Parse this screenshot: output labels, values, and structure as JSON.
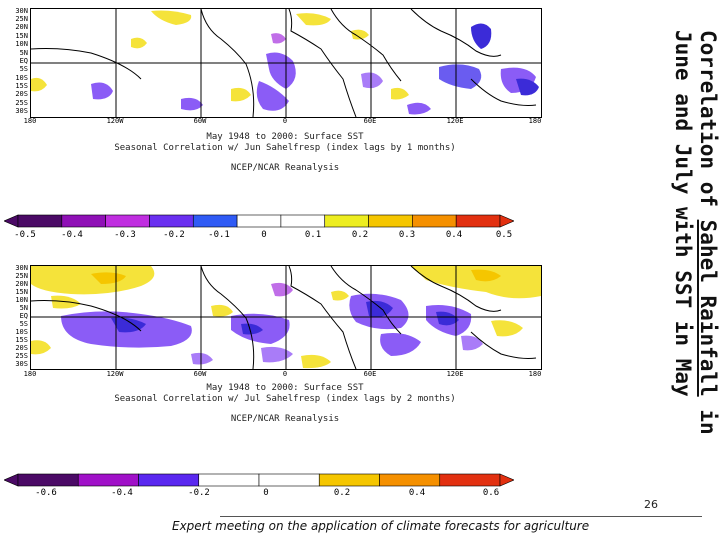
{
  "slide": {
    "title_part1": "Correlation of ",
    "title_link": "Sahel Rainfall",
    "title_part2": " in June and July with SST in May",
    "page_number": "26",
    "footer": "Expert meeting on the application of climate forecasts for agriculture"
  },
  "map1": {
    "lat_labels": [
      "30N",
      "25N",
      "20N",
      "15N",
      "10N",
      "5N",
      "EQ",
      "5S",
      "10S",
      "15S",
      "20S",
      "25S",
      "30S"
    ],
    "lon_labels": [
      "180",
      "120W",
      "60W",
      "0",
      "60E",
      "120E",
      "180"
    ],
    "caption_line1": "May 1948 to 2000: Surface SST",
    "caption_line2": "Seasonal Correlation w/ Jun Sahelfresp (index lags by 1 months)",
    "caption_line3": "NCEP/NCAR Reanalysis",
    "colorbar_labels": [
      "-0.5",
      "-0.4",
      "-0.3",
      "-0.2",
      "-0.1",
      "0",
      "0.1",
      "0.2",
      "0.3",
      "0.4",
      "0.5"
    ],
    "colorbar_colors": [
      "#4b0a66",
      "#8f10b6",
      "#c02ee0",
      "#6a2ff0",
      "#2f5bf5",
      "#ffffff",
      "#ffffff",
      "#eded20",
      "#f5c600",
      "#f59000",
      "#e23010"
    ]
  },
  "map2": {
    "lat_labels": [
      "30N",
      "25N",
      "20N",
      "15N",
      "10N",
      "5N",
      "EQ",
      "5S",
      "10S",
      "15S",
      "20S",
      "25S",
      "30S"
    ],
    "lon_labels": [
      "180",
      "120W",
      "60W",
      "0",
      "60E",
      "120E",
      "180"
    ],
    "caption_line1": "May 1948 to 2000: Surface SST",
    "caption_line2": "Seasonal Correlation w/ Jul Sahelfresp (index lags by 2 months)",
    "caption_line3": "NCEP/NCAR Reanalysis",
    "colorbar_labels": [
      "-0.6",
      "-0.4",
      "-0.2",
      "0",
      "0.2",
      "0.4",
      "0.6"
    ],
    "colorbar_colors": [
      "#4b0a66",
      "#a010c8",
      "#5a28f0",
      "#ffffff",
      "#ffffff",
      "#f5c600",
      "#f59000",
      "#e23010"
    ]
  },
  "colors": {
    "land": "#ffffff",
    "positive": "#f5e33a",
    "negative_light": "#8b5cf6",
    "negative_dark": "#3b2bd8"
  }
}
